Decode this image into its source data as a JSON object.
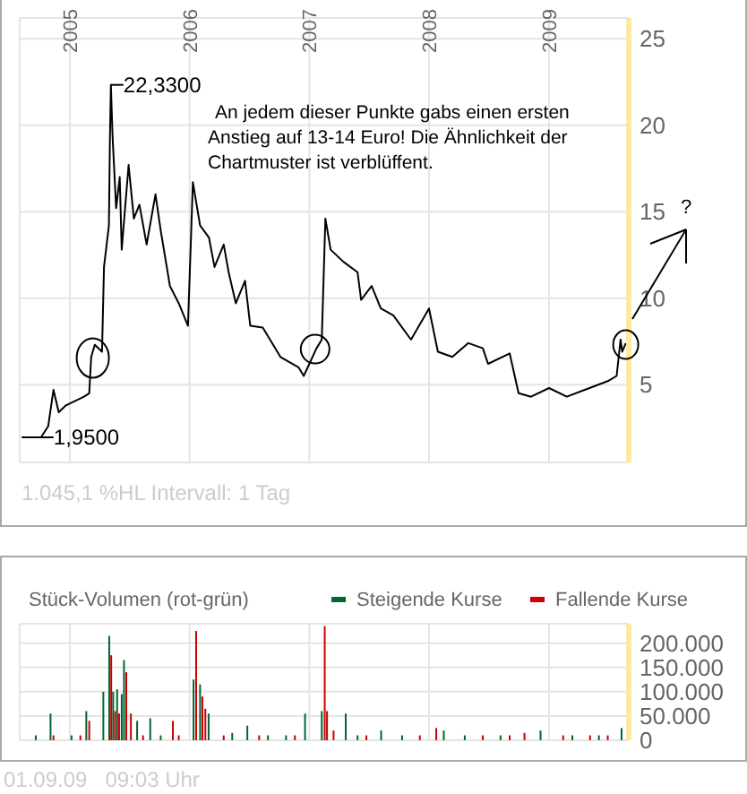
{
  "chart_data": [
    {
      "type": "line",
      "xlim": [
        "2004-08-01",
        "2009-09-01"
      ],
      "xticks": [
        {
          "value": "2005-01-01",
          "label": "2005"
        },
        {
          "value": "2006-01-01",
          "label": "2006"
        },
        {
          "value": "2007-01-01",
          "label": "2007"
        },
        {
          "value": "2008-01-01",
          "label": "2008"
        },
        {
          "value": "2009-01-01",
          "label": "2009"
        }
      ],
      "ylim": [
        0.5,
        26.2
      ],
      "yticks": [
        5,
        10,
        15,
        20,
        25
      ],
      "grid": true,
      "series": [
        {
          "color": "#000000",
          "x": [
            "2004-08-07",
            "2004-10-05",
            "2004-10-27",
            "2004-11-12",
            "2004-11-28",
            "2004-12-20",
            "2005-02-13",
            "2005-03-01",
            "2005-03-07",
            "2005-03-18",
            "2005-04-09",
            "2005-04-15",
            "2005-04-30",
            "2005-05-03",
            "2005-05-06",
            "2005-05-11",
            "2005-05-22",
            "2005-06-02",
            "2005-06-08",
            "2005-06-29",
            "2005-07-15",
            "2005-08-01",
            "2005-08-23",
            "2005-09-19",
            "2005-10-05",
            "2005-11-02",
            "2005-11-29",
            "2005-12-27",
            "2006-01-11",
            "2006-02-02",
            "2006-03-01",
            "2006-03-18",
            "2006-04-15",
            "2006-04-30",
            "2006-05-22",
            "2006-06-19",
            "2006-07-05",
            "2006-08-12",
            "2006-10-05",
            "2006-11-29",
            "2006-12-15",
            "2007-01-23",
            "2007-02-08",
            "2007-02-19",
            "2007-03-07",
            "2007-04-15",
            "2007-05-28",
            "2007-06-08",
            "2007-07-10",
            "2007-08-07",
            "2007-09-14",
            "2007-11-07",
            "2008-01-01",
            "2008-01-28",
            "2008-03-12",
            "2008-04-30",
            "2008-06-13",
            "2008-06-29",
            "2008-09-03",
            "2008-09-30",
            "2008-11-07",
            "2009-01-01",
            "2009-02-24",
            "2009-04-20",
            "2009-06-29",
            "2009-07-26",
            "2009-08-07",
            "2009-08-12",
            "2009-08-23"
          ],
          "values": [
            1.95,
            1.95,
            2.6,
            4.7,
            3.4,
            3.8,
            4.3,
            4.5,
            6.6,
            7.3,
            6.9,
            11.8,
            14.2,
            19.1,
            22.33,
            19.4,
            15.2,
            17,
            12.8,
            17.7,
            14.6,
            15.4,
            13.1,
            16,
            13.9,
            10.7,
            9.7,
            8.4,
            16.7,
            14.2,
            13.5,
            11.8,
            13.1,
            11.5,
            9.7,
            11,
            8.4,
            8.3,
            6.6,
            6,
            5.5,
            7.1,
            7.6,
            14.6,
            12.8,
            12.1,
            11.5,
            9.9,
            10.7,
            9.4,
            9,
            7.6,
            9.4,
            6.9,
            6.6,
            7.4,
            7.1,
            6.2,
            6.8,
            4.5,
            4.3,
            4.8,
            4.3,
            4.7,
            5.2,
            5.5,
            7.6,
            6.9,
            7.4
          ]
        }
      ],
      "annotations": [
        {
          "text": "22,3300",
          "x": "2005-05-06",
          "y": 22.33
        },
        {
          "text": "1,9500",
          "x": "2004-10-05",
          "y": 1.95
        },
        "An jedem dieser Punkte gabs einen ersten\nAnstieg auf 13-14 Euro! Die Ähnlichkeit der\nChartmuster ist verblüffent.",
        "?",
        "1.045,1 %HL Intervall: 1 Tag"
      ]
    },
    {
      "type": "bar",
      "title": "Stück-Volumen (rot-grün)",
      "xlim": [
        "2004-08-01",
        "2009-09-01"
      ],
      "xticks": [
        {
          "value": "2005-01-01",
          "label": null
        },
        {
          "value": "2006-01-01",
          "label": null
        },
        {
          "value": "2007-01-01",
          "label": null
        },
        {
          "value": "2008-01-01",
          "label": null
        },
        {
          "value": "2009-01-01",
          "label": null
        }
      ],
      "ylim": [
        0,
        240000
      ],
      "yticks": [
        {
          "value": 0,
          "label": "0"
        },
        {
          "value": 50000,
          "label": "50.000"
        },
        {
          "value": 100000,
          "label": "100.000"
        },
        {
          "value": 150000,
          "label": "150.000"
        },
        {
          "value": 200000,
          "label": "200.000"
        }
      ],
      "grid": true,
      "tick_labels": "y",
      "legend": "top right",
      "series": [
        {
          "name": "Steigende Kurse",
          "color": "#006633",
          "x": [
            "2004-09-19",
            "2004-11-03",
            "2005-01-06",
            "2005-02-20",
            "2005-04-13",
            "2005-05-01",
            "2005-05-13",
            "2005-05-25",
            "2005-06-08",
            "2005-06-15",
            "2005-07-25",
            "2005-09-03",
            "2005-10-05",
            "2006-01-13",
            "2006-02-02",
            "2006-02-28",
            "2006-05-11",
            "2006-06-26",
            "2006-08-28",
            "2006-10-22",
            "2006-12-19",
            "2007-02-08",
            "2007-04-22",
            "2007-05-28",
            "2007-08-08",
            "2007-10-11",
            "2008-02-15",
            "2008-04-19",
            "2008-08-06",
            "2008-12-06",
            "2009-03-13",
            "2009-06-02",
            "2009-08-10"
          ],
          "values": [
            10000,
            55000,
            10000,
            60000,
            100000,
            215000,
            100000,
            105000,
            95000,
            165000,
            40000,
            45000,
            10000,
            125000,
            115000,
            55000,
            15000,
            30000,
            10000,
            10000,
            55000,
            60000,
            55000,
            10000,
            20000,
            10000,
            20000,
            10000,
            10000,
            20000,
            10000,
            10000,
            25000
          ]
        },
        {
          "name": "Fallende Kurse",
          "color": "#cc0000",
          "x": [
            "2004-11-12",
            "2005-02-02",
            "2005-03-01",
            "2005-05-07",
            "2005-05-19",
            "2005-05-31",
            "2005-06-22",
            "2005-07-06",
            "2005-08-12",
            "2005-11-11",
            "2005-11-29",
            "2006-01-21",
            "2006-02-09",
            "2006-02-18",
            "2006-04-15",
            "2006-08-01",
            "2006-11-18",
            "2007-02-17",
            "2007-02-24",
            "2007-03-16",
            "2007-06-24",
            "2007-12-04",
            "2008-01-23",
            "2008-06-13",
            "2008-09-03",
            "2008-10-18",
            "2009-02-13",
            "2009-05-06",
            "2009-06-29"
          ],
          "values": [
            10000,
            10000,
            40000,
            175000,
            60000,
            55000,
            140000,
            55000,
            10000,
            40000,
            10000,
            225000,
            90000,
            65000,
            10000,
            10000,
            10000,
            235000,
            60000,
            20000,
            10000,
            10000,
            25000,
            10000,
            10000,
            15000,
            10000,
            10000,
            10000
          ]
        }
      ],
      "annotations": [
        "01.09.09   09:03 Uhr"
      ]
    }
  ]
}
